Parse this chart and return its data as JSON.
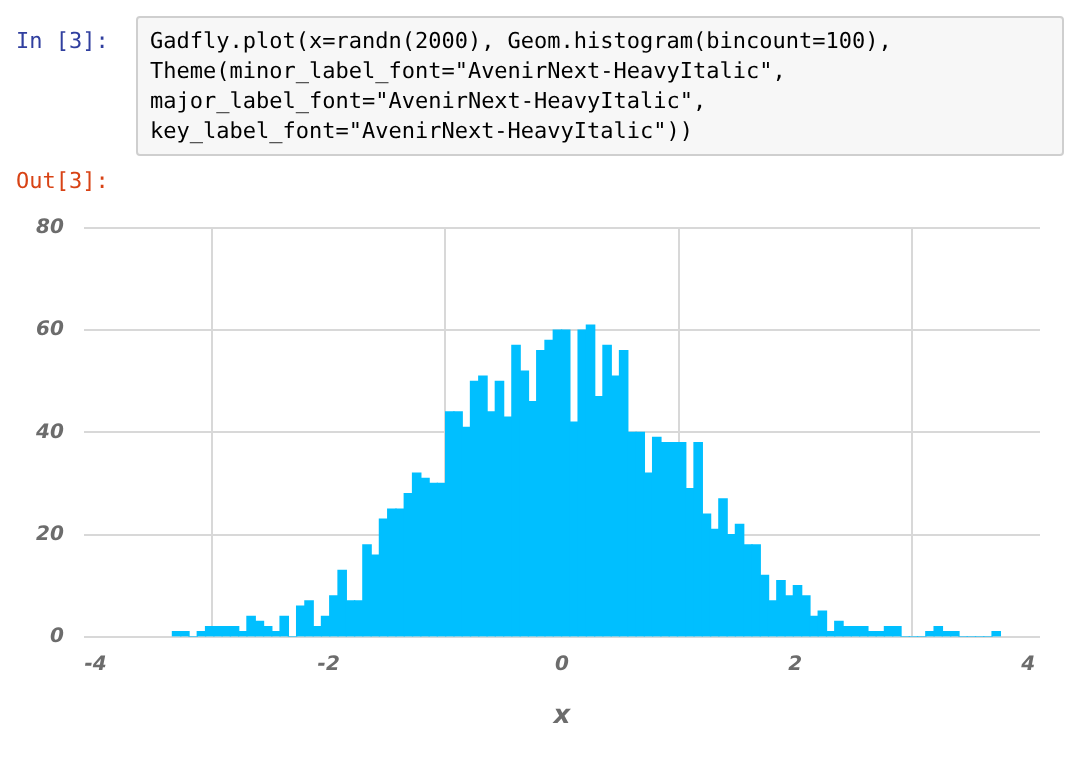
{
  "chart_data": {
    "type": "histogram",
    "xlabel": "x",
    "annotations": [
      "In [3]:",
      "Gadfly.plot(x=randn(2000), Geom.histogram(bincount=100),",
      "Theme(minor_label_font=\"AvenirNext-HeavyItalic\",",
      "major_label_font=\"AvenirNext-HeavyItalic\",",
      "key_label_font=\"AvenirNext-HeavyItalic\"))",
      "Out[3]:"
    ],
    "bins": [
      -3.34,
      -3.269,
      -3.198,
      -3.127,
      -3.056,
      -2.985,
      -2.914,
      -2.843,
      -2.772,
      -2.701,
      -2.63,
      -2.559,
      -2.488,
      -2.417,
      -2.346,
      -2.275,
      -2.204,
      -2.133,
      -2.062,
      -1.991,
      -1.92,
      -1.849,
      -1.778,
      -1.707,
      -1.636,
      -1.565,
      -1.494,
      -1.423,
      -1.352,
      -1.281,
      -1.21,
      -1.139,
      -1.068,
      -0.997,
      -0.926,
      -0.855,
      -0.784,
      -0.713,
      -0.642,
      -0.571,
      -0.5,
      -0.429,
      -0.358,
      -0.287,
      -0.216,
      -0.145,
      -0.074,
      -0.003,
      0.068,
      0.139,
      0.21,
      0.281,
      0.352,
      0.423,
      0.494,
      0.565,
      0.636,
      0.707,
      0.778,
      0.849,
      0.92,
      0.991,
      1.062,
      1.133,
      1.204,
      1.275,
      1.346,
      1.417,
      1.488,
      1.559,
      1.63,
      1.701,
      1.772,
      1.843,
      1.914,
      1.985,
      2.056,
      2.127,
      2.198,
      2.269,
      2.34,
      2.411,
      2.482,
      2.553,
      2.624,
      2.695,
      2.766,
      2.837,
      2.908,
      2.979,
      3.05,
      3.121,
      3.192,
      3.263,
      3.334,
      3.405,
      3.476,
      3.547,
      3.618,
      3.689,
      3.76
    ],
    "values": [
      1,
      1,
      0,
      1,
      2,
      2,
      2,
      2,
      1,
      4,
      3,
      2,
      1,
      4,
      0,
      6,
      7,
      2,
      4,
      8,
      13,
      7,
      7,
      18,
      16,
      23,
      25,
      25,
      28,
      32,
      31,
      30,
      30,
      44,
      44,
      41,
      50,
      51,
      44,
      50,
      43,
      57,
      52,
      46,
      56,
      58,
      60,
      60,
      42,
      60,
      61,
      47,
      57,
      51,
      56,
      40,
      40,
      32,
      39,
      38,
      38,
      38,
      29,
      38,
      24,
      21,
      27,
      20,
      22,
      18,
      18,
      12,
      7,
      11,
      8,
      10,
      8,
      4,
      5,
      1,
      3,
      2,
      2,
      2,
      1,
      1,
      2,
      2,
      0,
      0,
      0,
      1,
      2,
      1,
      1,
      0,
      0,
      0,
      0,
      1
    ],
    "color": "#00bfff",
    "xlim": [
      -4.1,
      4.1
    ],
    "xticks": [
      -4,
      -2,
      0,
      2,
      4
    ],
    "ylim": [
      0,
      80
    ],
    "yticks": [
      0,
      20,
      40,
      60,
      80
    ],
    "grid": true
  }
}
